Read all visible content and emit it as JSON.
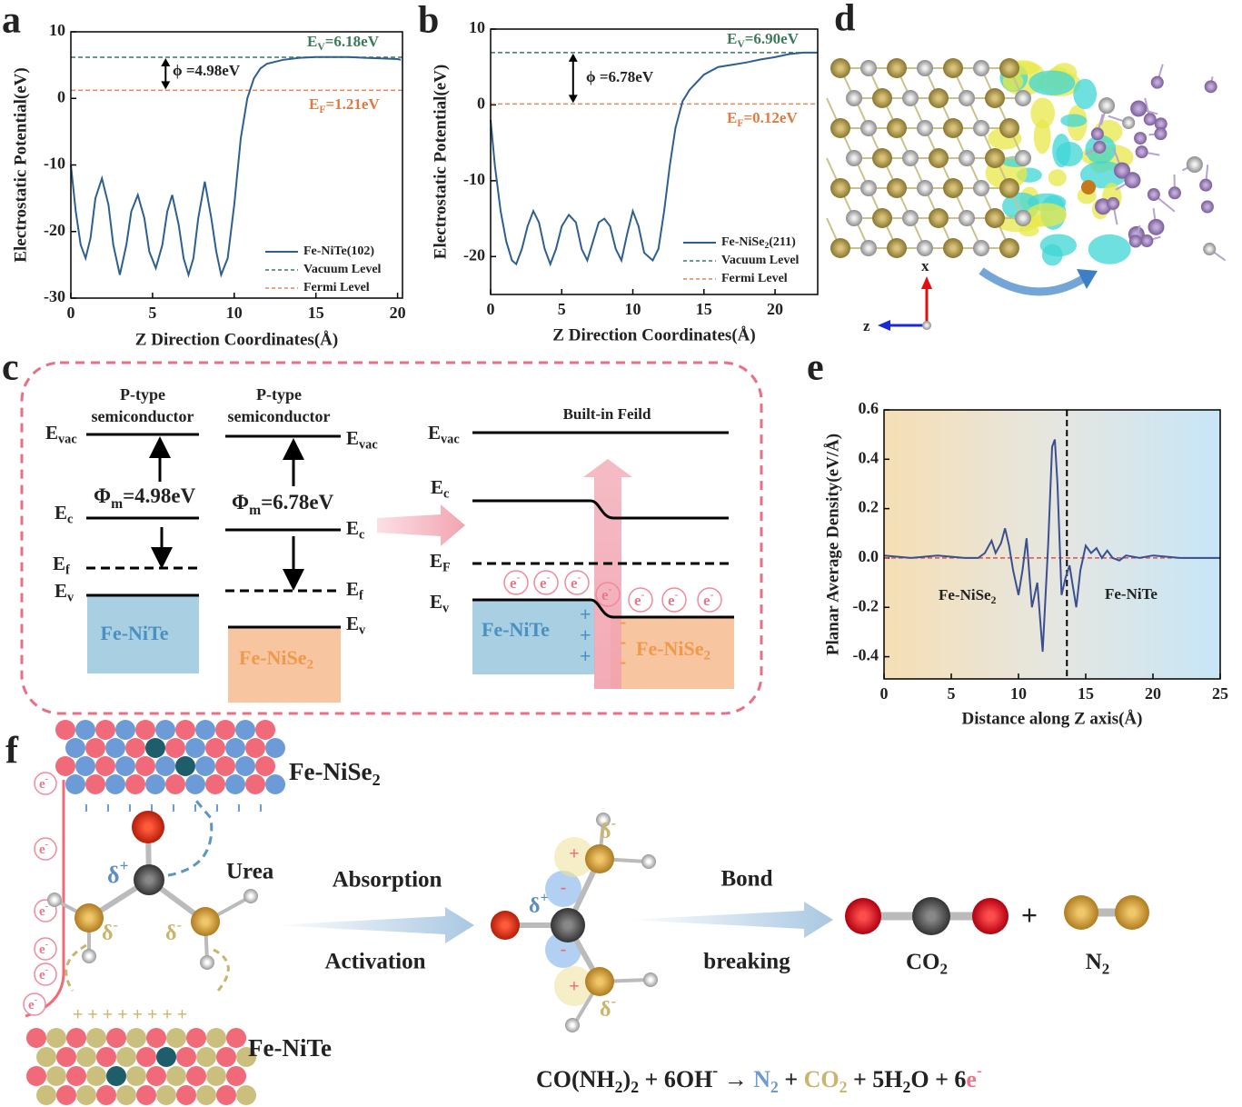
{
  "panel_labels": [
    "a",
    "b",
    "c",
    "d",
    "e",
    "f"
  ],
  "chart_data": [
    {
      "type": "line",
      "x_label": "Z Direction Coordinates(Å)",
      "y_label": "Electrostatic Potential(eV)",
      "xlim": [
        0,
        20.3
      ],
      "ylim": [
        -30,
        10
      ],
      "xticks": [
        0,
        5,
        10,
        15,
        20
      ],
      "yticks": [
        -30,
        -20,
        -10,
        0,
        10
      ],
      "x": [
        0,
        0.3,
        0.6,
        0.9,
        1.2,
        1.5,
        1.9,
        2.3,
        2.6,
        3.0,
        3.4,
        3.7,
        4.1,
        4.5,
        4.8,
        5.2,
        5.6,
        5.9,
        6.2,
        6.6,
        6.9,
        7.2,
        7.5,
        7.8,
        8.2,
        8.6,
        8.9,
        9.2,
        9.6,
        10.0,
        10.4,
        10.8,
        11.2,
        11.6,
        12,
        13,
        14,
        15,
        16,
        17,
        18,
        19,
        20,
        20.2
      ],
      "series": [
        {
          "name": "Fe-NiTe(102)",
          "color": "#2e5f8f",
          "values": [
            -10,
            -17,
            -22,
            -24,
            -21,
            -15,
            -12,
            -16,
            -22,
            -26.5,
            -22,
            -17,
            -14.5,
            -18,
            -23,
            -25.5,
            -22,
            -17,
            -14.5,
            -19,
            -24,
            -26.5,
            -24,
            -18,
            -12.5,
            -18,
            -23,
            -26.5,
            -24,
            -16,
            -6,
            0,
            3,
            4.5,
            5.2,
            5.8,
            6.1,
            6.2,
            6.2,
            6.2,
            6.1,
            6.0,
            5.9,
            5.8
          ]
        }
      ],
      "hlines": [
        {
          "name": "Vacuum Level",
          "y": 6.18,
          "color": "#3b7a5a"
        },
        {
          "name": "Fermi Level",
          "y": 1.21,
          "color": "#e08a5a"
        }
      ],
      "legend": true,
      "annotations": [
        {
          "color": "#3b7a5a",
          "text": [
            {
              "t": "E"
            },
            {
              "sub": "V"
            },
            {
              "t": "=6.18eV"
            }
          ]
        },
        {
          "color": "#222222",
          "text": "ϕ =4.98eV"
        },
        {
          "color": "#e07a40",
          "text": [
            {
              "t": "E"
            },
            {
              "sub": "F"
            },
            {
              "t": "=1.21eV"
            }
          ]
        }
      ]
    },
    {
      "type": "line",
      "x_label": "Z Direction Coordinates(Å)",
      "y_label": "Electrostatic Potential(eV)",
      "xlim": [
        0,
        23
      ],
      "ylim": [
        -25,
        10
      ],
      "xticks": [
        0,
        5,
        10,
        15,
        20
      ],
      "yticks": [
        -20,
        -10,
        0,
        10
      ],
      "x": [
        0,
        0.3,
        0.7,
        1.1,
        1.5,
        1.8,
        2.2,
        2.6,
        3.0,
        3.4,
        3.8,
        4.2,
        4.6,
        5.0,
        5.5,
        6.0,
        6.4,
        6.8,
        7.2,
        7.6,
        8.0,
        8.4,
        8.8,
        9.2,
        9.6,
        10.0,
        10.4,
        10.8,
        11.4,
        11.8,
        12.2,
        12.6,
        13.0,
        13.5,
        14,
        15,
        16,
        17,
        18,
        19,
        20,
        21,
        22,
        23
      ],
      "series": [
        {
          "name": [
            {
              "t": "Fe-NiSe"
            },
            {
              "sub": "2"
            },
            {
              "t": "(211)"
            }
          ],
          "color": "#2e5f8f",
          "values": [
            -2,
            -8,
            -14,
            -18,
            -20.5,
            -21,
            -19,
            -16,
            -14,
            -15.5,
            -19,
            -21,
            -19,
            -16,
            -14.5,
            -15.5,
            -19,
            -20.5,
            -18,
            -15.5,
            -15,
            -16,
            -19,
            -20.5,
            -17,
            -14,
            -16,
            -19.5,
            -20.5,
            -19,
            -14,
            -8,
            -3,
            0.5,
            2,
            4,
            5,
            5.3,
            5.6,
            6,
            6.3,
            6.7,
            6.9,
            6.9
          ]
        }
      ],
      "hlines": [
        {
          "name": "Vacuum Level",
          "y": 6.9,
          "color": "#3b7a5a"
        },
        {
          "name": "Fermi Level",
          "y": 0.12,
          "color": "#e08a5a"
        }
      ],
      "legend": true,
      "annotations": [
        {
          "color": "#3b7a5a",
          "text": [
            {
              "t": "E"
            },
            {
              "sub": "V"
            },
            {
              "t": "=6.90eV"
            }
          ]
        },
        {
          "color": "#222222",
          "text": "ϕ =6.78eV"
        },
        {
          "color": "#e07a40",
          "text": [
            {
              "t": "E"
            },
            {
              "sub": "F"
            },
            {
              "t": "=0.12eV"
            }
          ]
        }
      ]
    },
    {
      "type": "line",
      "x_label": "Distance along Z axis(Å)",
      "y_label": "Planar Average Density(eV/Å)",
      "xlim": [
        0,
        25
      ],
      "ylim": [
        -0.49,
        0.6
      ],
      "xticks": [
        0,
        5,
        10,
        15,
        20,
        25
      ],
      "yticks": [
        -0.4,
        -0.2,
        {
          "value": 0,
          "label": "0.0"
        },
        0.2,
        0.4,
        0.6
      ],
      "x": [
        0,
        2,
        4,
        6,
        7,
        7.5,
        8,
        8.3,
        8.7,
        9,
        9.3,
        9.6,
        10,
        10.3,
        10.6,
        11,
        11.4,
        11.8,
        12.2,
        12.5,
        12.7,
        12.9,
        13.2,
        13.5,
        13.8,
        14.0,
        14.3,
        14.6,
        15,
        15.4,
        15.8,
        16.2,
        16.6,
        17,
        17.5,
        18,
        19,
        20,
        22,
        25
      ],
      "series": [
        {
          "name": null,
          "color": "#3a4f8f",
          "values": [
            0.01,
            0,
            0.01,
            0,
            0,
            0.02,
            0.07,
            0.02,
            0.06,
            0.12,
            0.05,
            -0.05,
            -0.15,
            -0.05,
            0.08,
            -0.2,
            -0.1,
            -0.38,
            0.05,
            0.45,
            0.48,
            0.3,
            -0.15,
            -0.08,
            -0.03,
            -0.1,
            -0.2,
            -0.05,
            0.05,
            0.02,
            0.04,
            0,
            0.03,
            0,
            -0.01,
            0.01,
            0,
            0.01,
            0,
            0
          ]
        }
      ],
      "hlines": [
        {
          "y": 0,
          "color": "#d9534f"
        }
      ],
      "vlines": [
        13.6
      ],
      "legend": false,
      "annotations": [
        {
          "color": "#222222",
          "text": [
            {
              "t": "Fe-NiSe"
            },
            {
              "sub": "2"
            }
          ]
        },
        {
          "color": "#222222",
          "text": "Fe-NiTe"
        }
      ]
    }
  ],
  "panel_c": {
    "left": {
      "type1": [
        "P-type",
        "semiconductor"
      ],
      "type2": [
        "P-type",
        "semiconductor"
      ],
      "evac1": [
        {
          "t": "E"
        },
        {
          "sub": "vac"
        }
      ],
      "ec1": [
        {
          "t": "E"
        },
        {
          "sub": "c"
        }
      ],
      "ef1": [
        {
          "t": "E"
        },
        {
          "sub": "f"
        }
      ],
      "ev1": [
        {
          "t": "E"
        },
        {
          "sub": "v"
        }
      ],
      "evac2": [
        {
          "t": "E"
        },
        {
          "sub": "vac"
        }
      ],
      "ec2": [
        {
          "t": "E"
        },
        {
          "sub": "c"
        }
      ],
      "ef2": [
        {
          "t": "E"
        },
        {
          "sub": "f"
        }
      ],
      "ev2": [
        {
          "t": "E"
        },
        {
          "sub": "v"
        }
      ],
      "phi1": [
        {
          "t": "Φ"
        },
        {
          "sub": "m"
        },
        {
          "t": "=4.98eV"
        }
      ],
      "phi2": [
        {
          "t": "Φ"
        },
        {
          "sub": "m"
        },
        {
          "t": "=6.78eV"
        }
      ],
      "mat1": "Fe-NiTe",
      "mat2": [
        {
          "t": "Fe-NiSe"
        },
        {
          "sub": "2"
        }
      ]
    },
    "right": {
      "field": "Built-in Feild",
      "evac": [
        {
          "t": "E"
        },
        {
          "sub": "vac"
        }
      ],
      "ec": [
        {
          "t": "E"
        },
        {
          "sub": "c"
        }
      ],
      "ef": [
        {
          "t": "E"
        },
        {
          "sub": "F"
        }
      ],
      "ev": [
        {
          "t": "E"
        },
        {
          "sub": "v"
        }
      ],
      "mat1": "Fe-NiTe",
      "mat2": [
        {
          "t": "Fe-NiSe"
        },
        {
          "sub": "2"
        }
      ],
      "electrons": [
        [
          {
            "t": "e"
          },
          {
            "sup": "-"
          }
        ],
        [
          {
            "t": "e"
          },
          {
            "sup": "-"
          }
        ],
        [
          {
            "t": "e"
          },
          {
            "sup": "-"
          }
        ],
        [
          {
            "t": "e"
          },
          {
            "sup": "-"
          }
        ],
        [
          {
            "t": "e"
          },
          {
            "sup": "-"
          }
        ],
        [
          {
            "t": "e"
          },
          {
            "sup": "-"
          }
        ],
        [
          {
            "t": "e"
          },
          {
            "sup": "-"
          }
        ]
      ],
      "plus": [
        "+",
        "+",
        "+"
      ],
      "minus": [
        "-",
        "-",
        "-"
      ]
    }
  },
  "panel_d": {
    "axis_x": "x",
    "axis_z": "z"
  },
  "panel_f": {
    "top_material": [
      {
        "t": "Fe-NiSe"
      },
      {
        "sub": "2"
      }
    ],
    "bottom_material": "Fe-NiTe",
    "urea": "Urea",
    "electrons": [
      [
        {
          "t": "e"
        },
        {
          "sup": "-"
        }
      ],
      [
        {
          "t": "e"
        },
        {
          "sup": "-"
        }
      ],
      [
        {
          "t": "e"
        },
        {
          "sup": "-"
        }
      ],
      [
        {
          "t": "e"
        },
        {
          "sup": "-"
        }
      ],
      [
        {
          "t": "e"
        },
        {
          "sup": "-"
        }
      ],
      [
        {
          "t": "e"
        },
        {
          "sup": "-"
        }
      ]
    ],
    "surface_plus": "+ + + + + + + +",
    "deltas_left": [
      [
        {
          "t": "δ"
        },
        {
          "sup": "+"
        }
      ],
      [
        {
          "t": "δ"
        },
        {
          "sup": "-"
        }
      ],
      [
        {
          "t": "δ"
        },
        {
          "sup": "-"
        }
      ]
    ],
    "deltas_mid": [
      [
        {
          "t": "δ"
        },
        {
          "sup": "+"
        }
      ],
      [
        {
          "t": "δ"
        },
        {
          "sup": "-"
        }
      ],
      [
        {
          "t": "δ"
        },
        {
          "sup": "-"
        }
      ]
    ],
    "charges": [
      "+",
      "-",
      "-",
      "+"
    ],
    "step1": [
      "Absorption",
      "Activation"
    ],
    "step2": [
      "Bond",
      "breaking"
    ],
    "co2": [
      {
        "t": "CO"
      },
      {
        "sub": "2"
      }
    ],
    "plus": "+",
    "n2": [
      {
        "t": "N"
      },
      {
        "sub": "2"
      }
    ],
    "equation": [
      {
        "t": "CO(NH"
      },
      {
        "sub": "2"
      },
      {
        "t": ")"
      },
      {
        "sub": "2"
      },
      {
        "t": " + 6OH"
      },
      {
        "sup": "-"
      },
      {
        "t": " → "
      },
      {
        "t": "N",
        "color": "#6d9bd1"
      },
      {
        "sub": "2",
        "color": "#6d9bd1"
      },
      {
        "t": " + "
      },
      {
        "t": "CO",
        "color": "#c8b66c"
      },
      {
        "sub": "2",
        "color": "#c8b66c"
      },
      {
        "t": " + 5H"
      },
      {
        "sub": "2"
      },
      {
        "t": "O + 6"
      },
      {
        "t": "e",
        "color": "#e8788a"
      },
      {
        "sup": "-",
        "color": "#e8788a"
      }
    ]
  }
}
